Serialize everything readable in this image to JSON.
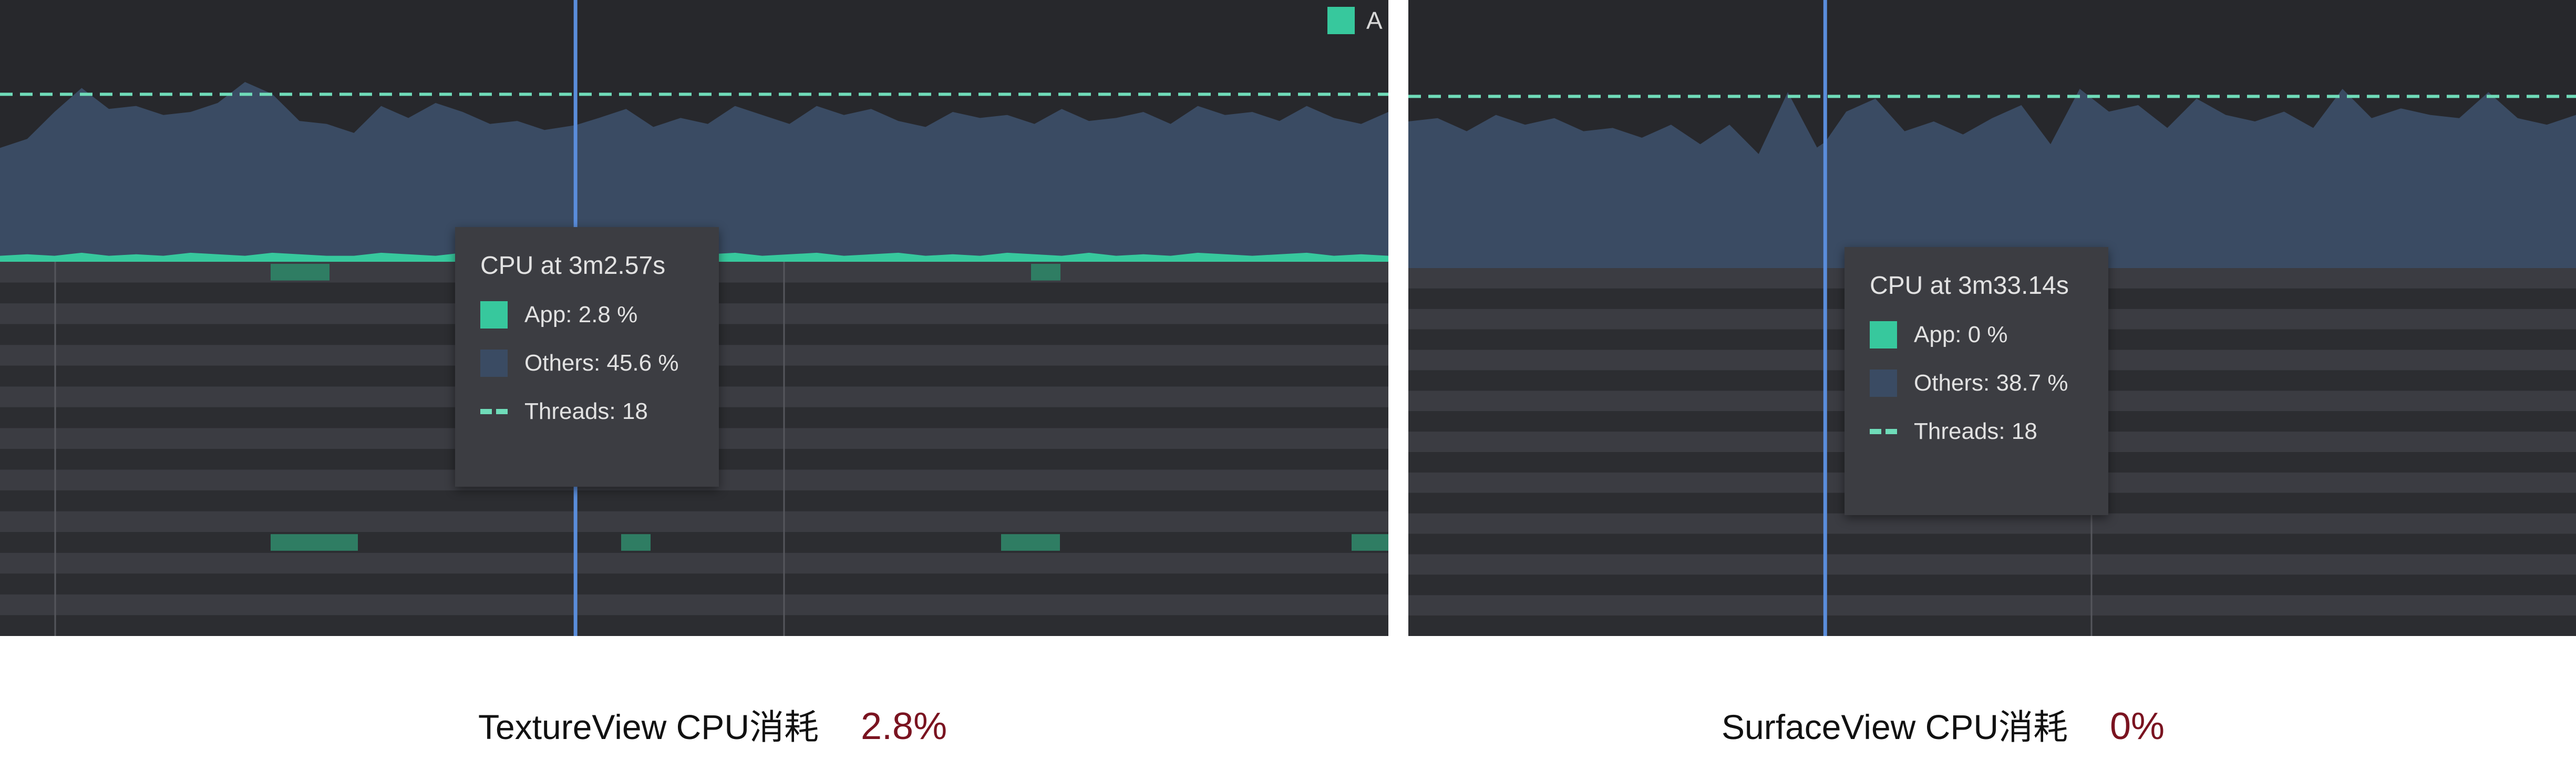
{
  "colors": {
    "panel_bg": "#27282c",
    "app": "#37c89d",
    "others": "#3a4b63",
    "threads": "#6fdcb9",
    "cursor": "#5a8ddb",
    "caption_value": "#7a1320"
  },
  "chart_data": [
    {
      "type": "area",
      "panel": "TextureView",
      "x_unit": "s",
      "x": [
        172.0,
        172.5,
        173.0,
        173.5,
        174.0,
        174.5,
        175.0,
        175.5,
        176.0,
        176.5,
        177.0,
        177.5,
        178.0,
        178.5,
        179.0,
        179.5,
        180.0,
        180.5,
        181.0,
        181.5,
        182.0,
        182.57,
        183.0,
        183.5,
        184.0,
        184.5,
        185.0,
        185.5,
        186.0,
        186.5,
        187.0,
        187.5,
        188.0,
        188.5,
        189.0,
        189.5,
        190.0,
        190.5,
        191.0,
        191.5,
        192.0,
        192.5,
        193.0,
        193.5,
        194.0,
        194.5,
        195.0,
        195.5,
        196.0,
        196.5,
        197.0,
        197.5
      ],
      "series": [
        {
          "name": "Others",
          "values": [
            38,
            41,
            50,
            58,
            51,
            52,
            49,
            50,
            53,
            60,
            56,
            47,
            46,
            43,
            52,
            48,
            53,
            50,
            46,
            47,
            44,
            45.6,
            48,
            51,
            45,
            48,
            46,
            52,
            49,
            46,
            52,
            49,
            51,
            47,
            45,
            50,
            48,
            49,
            46,
            51,
            47,
            48,
            50,
            46,
            52,
            49,
            50,
            47,
            52,
            48,
            46,
            50
          ]
        },
        {
          "name": "App",
          "values": [
            2,
            2.5,
            2,
            3,
            2,
            2.5,
            2,
            3,
            2.5,
            2,
            3,
            2.5,
            2,
            2,
            3,
            2.5,
            2,
            3,
            2,
            2.5,
            2.5,
            2.8,
            2,
            3,
            2.5,
            2,
            2.5,
            3,
            2,
            2.5,
            3,
            2,
            2.5,
            3,
            2,
            2.5,
            2,
            3,
            2.5,
            2,
            3,
            2,
            2.5,
            2,
            3,
            2.5,
            2,
            2.5,
            3,
            2,
            2.5,
            2
          ]
        },
        {
          "name": "Threads",
          "values": [
            18,
            18,
            18,
            18,
            18,
            18,
            18,
            18,
            18,
            18,
            18,
            18,
            18,
            18,
            18,
            18,
            18,
            18,
            18,
            18,
            18,
            18,
            18,
            18,
            18,
            18,
            18,
            18,
            18,
            18,
            18,
            18,
            18,
            18,
            18,
            18,
            18,
            18,
            18,
            18,
            18,
            18,
            18,
            18,
            18,
            18,
            18,
            18,
            18,
            18,
            18,
            18
          ]
        }
      ],
      "ylim": [
        0,
        100
      ],
      "legend_text": "A",
      "tooltip": {
        "title": "CPU at 3m2.57s",
        "app": "App: 2.8 %",
        "others": "Others: 45.6 %",
        "threads": "Threads: 18"
      },
      "caption_label": "TextureView CPU消耗",
      "caption_value": "2.8%"
    },
    {
      "type": "area",
      "panel": "SurfaceView",
      "x_unit": "s",
      "x": [
        206.0,
        206.5,
        207.0,
        207.5,
        208.0,
        208.5,
        209.0,
        209.5,
        210.0,
        210.5,
        211.0,
        211.5,
        212.0,
        212.5,
        213.0,
        213.14,
        213.5,
        214.0,
        214.5,
        215.0,
        215.5,
        216.0,
        216.5,
        217.0,
        217.5,
        218.0,
        218.5,
        219.0,
        219.5,
        220.0,
        220.5,
        221.0,
        221.5,
        222.0,
        222.5,
        223.0,
        223.5,
        224.0,
        224.5,
        225.0,
        225.5,
        226.0
      ],
      "series": [
        {
          "name": "Others",
          "values": [
            45,
            46,
            42,
            47,
            44,
            46,
            42,
            43,
            40,
            44,
            38,
            44,
            35,
            54,
            37,
            38.7,
            48,
            52,
            42,
            45,
            41,
            46,
            50,
            38,
            55,
            48,
            50,
            43,
            52,
            47,
            45,
            48,
            43,
            55,
            46,
            49,
            47,
            46,
            54,
            46,
            44,
            47
          ]
        },
        {
          "name": "App",
          "values": [
            0,
            0,
            0,
            0,
            0,
            0,
            0,
            0,
            0,
            0,
            0,
            0,
            0,
            0,
            0,
            0,
            0,
            0,
            0,
            0,
            0,
            0,
            0,
            0,
            0,
            0,
            0,
            0,
            0,
            0,
            0,
            0,
            0,
            0,
            0,
            0,
            0,
            0,
            0,
            0,
            0,
            0
          ]
        },
        {
          "name": "Threads",
          "values": [
            18,
            18,
            18,
            18,
            18,
            18,
            18,
            18,
            18,
            18,
            18,
            18,
            18,
            18,
            18,
            18,
            18,
            18,
            18,
            18,
            18,
            18,
            18,
            18,
            18,
            18,
            18,
            18,
            18,
            18,
            18,
            18,
            18,
            18,
            18,
            18,
            18,
            18,
            18,
            18,
            18,
            18
          ]
        }
      ],
      "ylim": [
        0,
        100
      ],
      "tooltip": {
        "title": "CPU at 3m33.14s",
        "app": "App: 0 %",
        "others": "Others: 38.7 %",
        "threads": "Threads: 18"
      },
      "caption_label": "SurfaceView CPU消耗",
      "caption_value": "0%"
    }
  ]
}
